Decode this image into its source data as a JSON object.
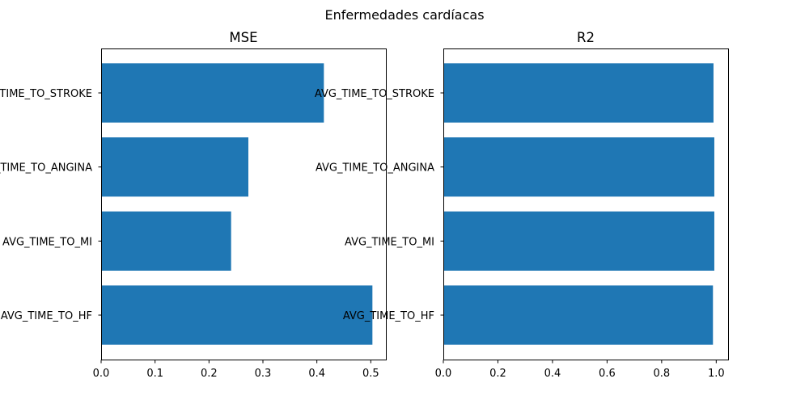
{
  "chart_data": {
    "title": "Enfermedades cardíacas",
    "type": "bar",
    "orientation": "horizontal",
    "color": "#1f77b4",
    "subplots": [
      {
        "title": "MSE",
        "categories": [
          "AVG_TIME_TO_HF",
          "AVG_TIME_TO_MI",
          "AVG_TIME_TO_ANGINA",
          "AVG_TIME_TO_STROKE"
        ],
        "values": [
          0.503,
          0.241,
          0.273,
          0.413
        ],
        "xlim": [
          0,
          0.528
        ],
        "xticks": [
          0.0,
          0.1,
          0.2,
          0.3,
          0.4,
          0.5
        ],
        "xtick_labels": [
          "0.0",
          "0.1",
          "0.2",
          "0.3",
          "0.4",
          "0.5"
        ]
      },
      {
        "title": "R2",
        "categories": [
          "AVG_TIME_TO_HF",
          "AVG_TIME_TO_MI",
          "AVG_TIME_TO_ANGINA",
          "AVG_TIME_TO_STROKE"
        ],
        "values": [
          0.988,
          0.993,
          0.993,
          0.99
        ],
        "xlim": [
          0,
          1.0435
        ],
        "xticks": [
          0.0,
          0.2,
          0.4,
          0.6,
          0.8,
          1.0
        ],
        "xtick_labels": [
          "0.0",
          "0.2",
          "0.4",
          "0.6",
          "0.8",
          "1.0"
        ]
      }
    ]
  }
}
